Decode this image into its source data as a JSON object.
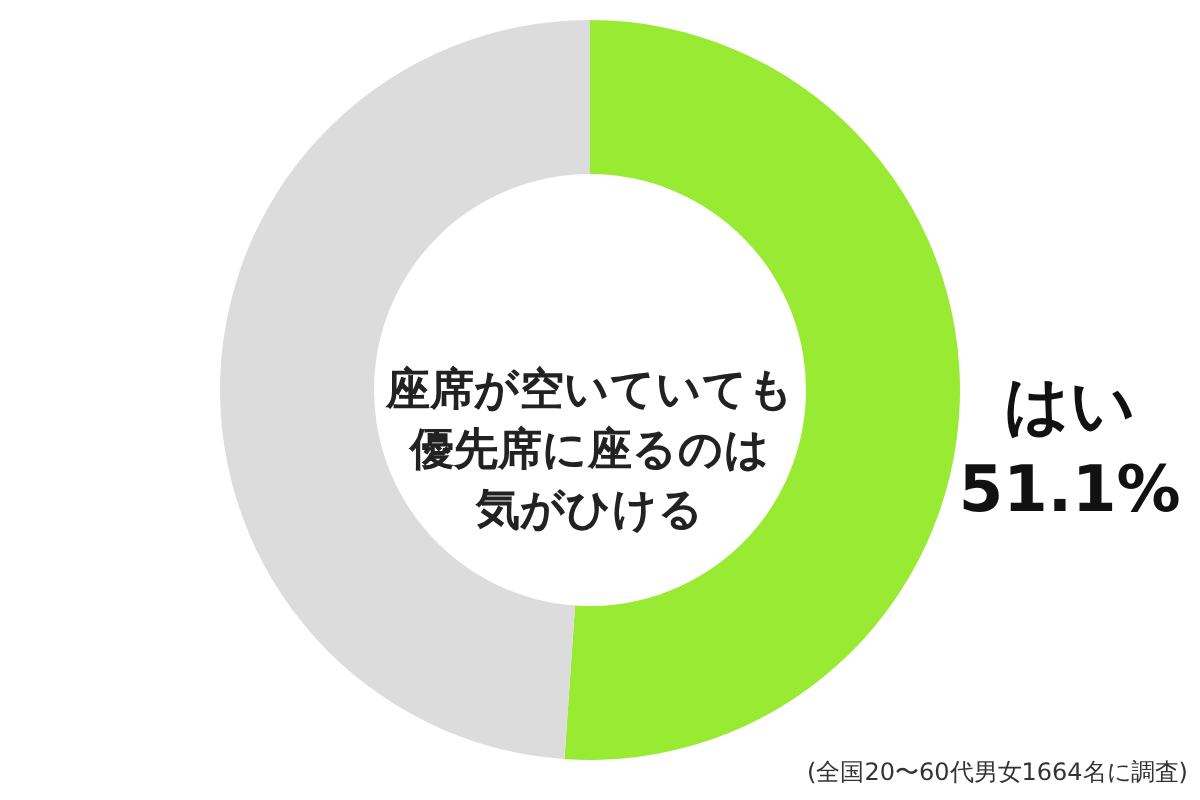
{
  "chart_data": {
    "type": "donut",
    "title": "座席が空いていても優先席に座るのは気がひける",
    "categories": [
      "はい",
      null
    ],
    "values": [
      51.1,
      48.9
    ],
    "colors": [
      "#99ea33",
      "#dcdcdc"
    ],
    "value_labels": [
      "51.1%",
      null
    ],
    "annotations": [
      "(全国20〜60代男女1664名に調査)"
    ]
  }
}
